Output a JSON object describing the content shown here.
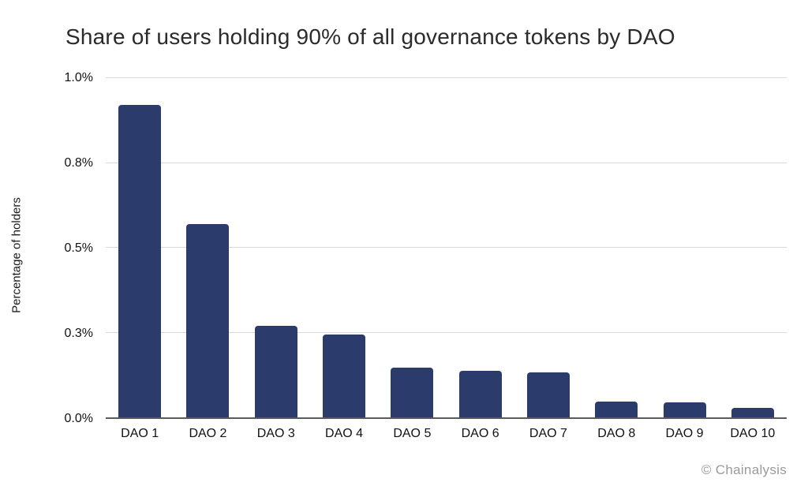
{
  "chart_data": {
    "type": "bar",
    "title": "Share of users holding 90% of all governance tokens by DAO",
    "xlabel": "",
    "ylabel": "Percentage of holders",
    "categories": [
      "DAO 1",
      "DAO 2",
      "DAO 3",
      "DAO 4",
      "DAO 5",
      "DAO 6",
      "DAO 7",
      "DAO 8",
      "DAO 9",
      "DAO 10"
    ],
    "values": [
      0.92,
      0.57,
      0.27,
      0.245,
      0.147,
      0.138,
      0.132,
      0.047,
      0.044,
      0.028
    ],
    "values_unit": "%",
    "ylim": [
      0,
      1.0
    ],
    "y_ticks": [
      {
        "value": 0.0,
        "label": "0.0%"
      },
      {
        "value": 0.25,
        "label": "0.3%"
      },
      {
        "value": 0.5,
        "label": "0.5%"
      },
      {
        "value": 0.75,
        "label": "0.8%"
      },
      {
        "value": 1.0,
        "label": "1.0%"
      }
    ],
    "grid": "horizontal",
    "legend": "none",
    "bar_color": "#2b3b6c",
    "gridline_color": "#d9d9d9",
    "axis_line_color": "#5b5b5b"
  },
  "attribution": "© Chainalysis"
}
